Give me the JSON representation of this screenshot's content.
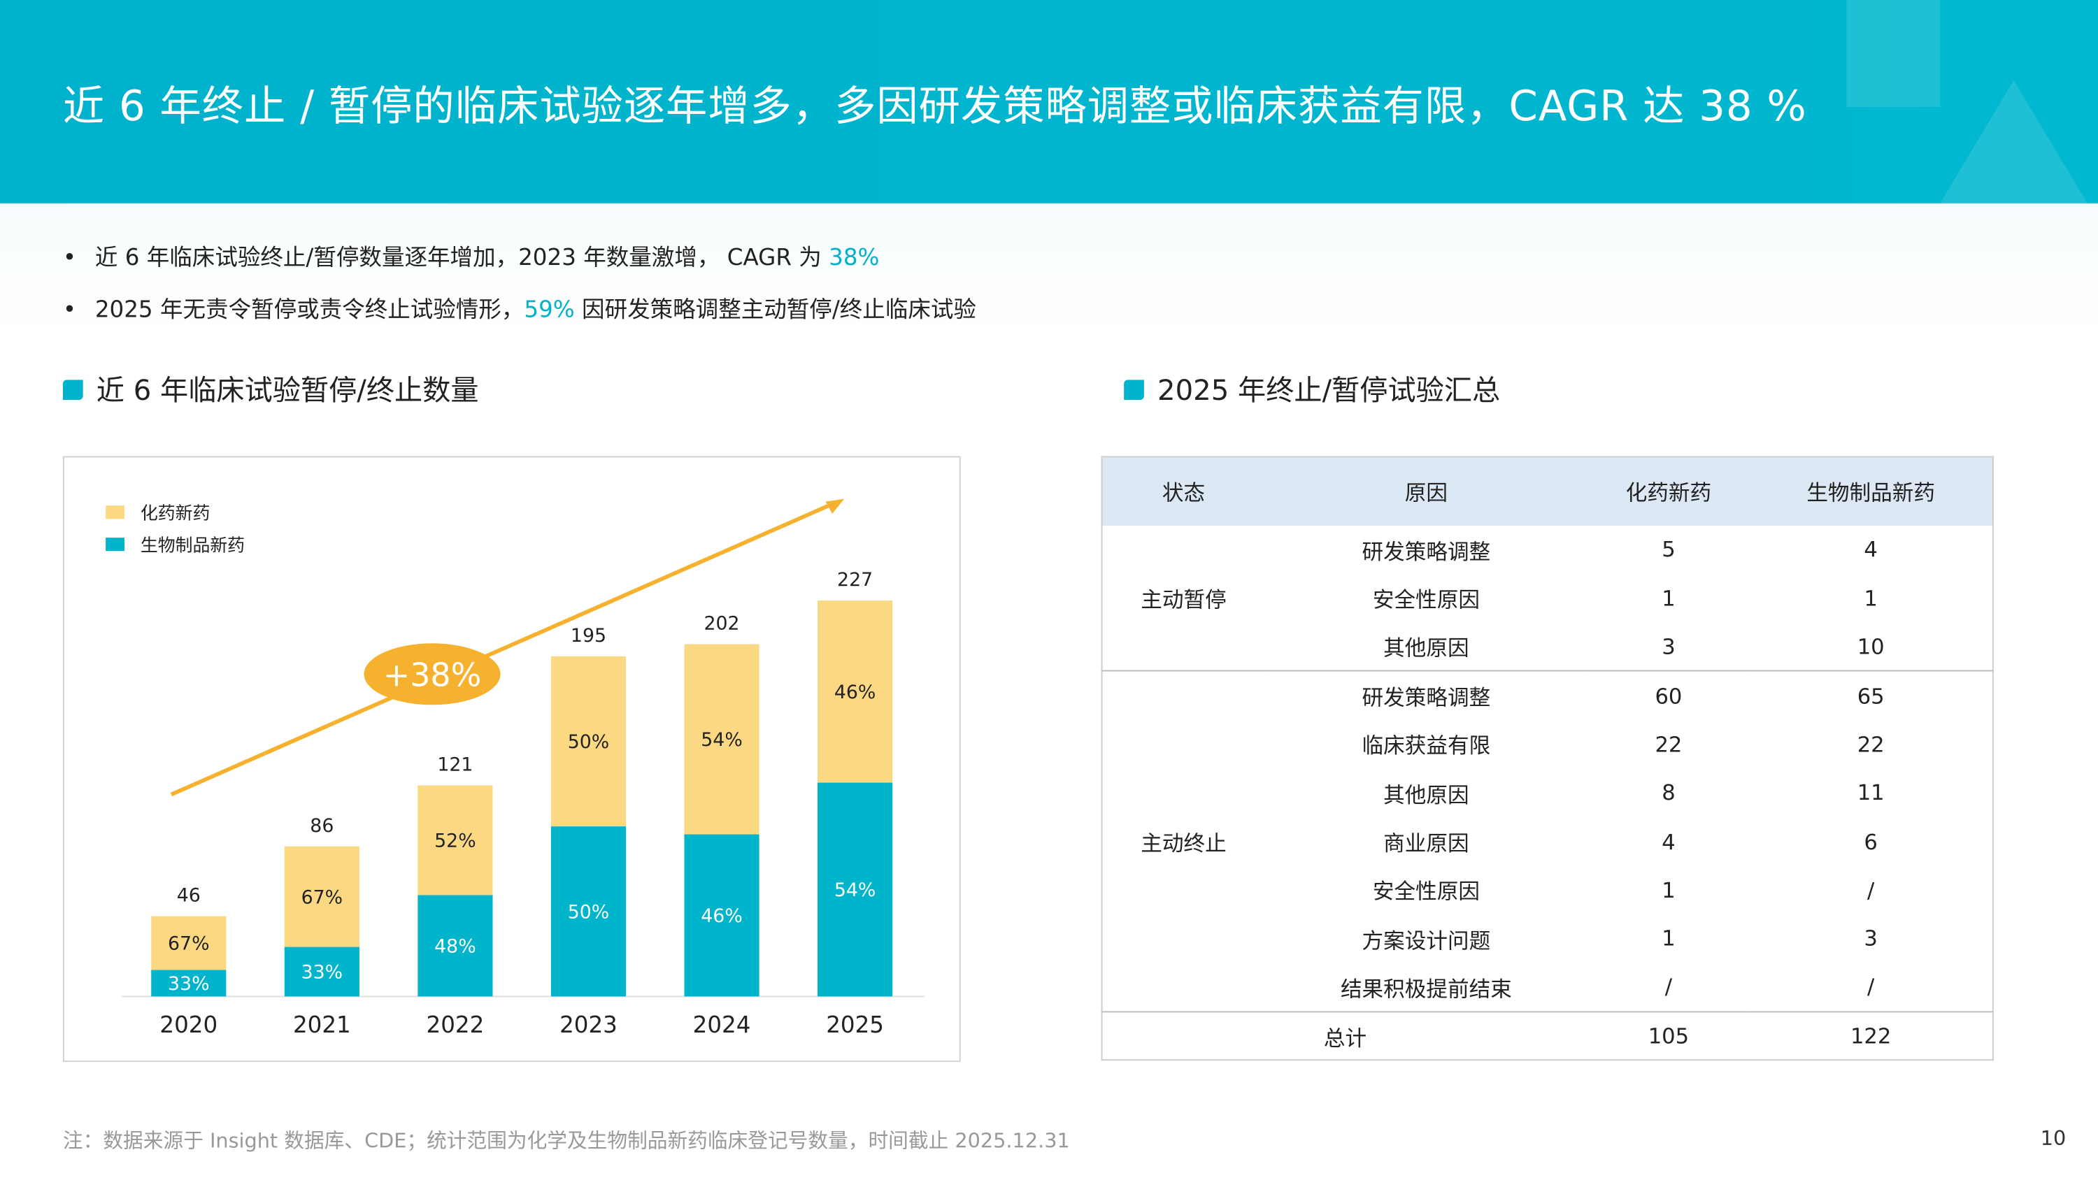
{
  "title": "近 6 年终止 / 暂停的临床试验逐年增多，多因研发策略调整或临床获益有限，CAGR 达 38 %",
  "bullets": [
    {
      "pre": "近 6 年临床试验终止/暂停数量逐年增加，2023 年数量激增， CAGR 为 ",
      "hl": "38%",
      "post": ""
    },
    {
      "pre": "2025 年无责令暂停或责令终止试验情形，",
      "hl": "59%",
      "post": " 因研发策略调整主动暂停/终止临床试验"
    }
  ],
  "left_section_title": "近 6 年临床试验暂停/终止数量",
  "right_section_title": "2025 年终止/暂停试验汇总",
  "colors": {
    "accent": "#00B2CB",
    "chem": "#FCD883",
    "bio": "#00B4CB",
    "arrow": "#F6B22E"
  },
  "chart_data": {
    "type": "bar",
    "stacked": true,
    "categories": [
      "2020",
      "2021",
      "2022",
      "2023",
      "2024",
      "2025"
    ],
    "totals": [
      46,
      86,
      121,
      195,
      202,
      227
    ],
    "series": [
      {
        "name": "化药新药",
        "percent": [
          67,
          67,
          52,
          50,
          54,
          46
        ],
        "color": "#FCD883"
      },
      {
        "name": "生物制品新药",
        "percent": [
          33,
          33,
          48,
          50,
          46,
          54
        ],
        "color": "#00B4CB"
      }
    ],
    "annotation": "+38%",
    "legend": "top-left",
    "ylim": [
      0,
      227
    ],
    "grid": false
  },
  "table": {
    "headers": [
      "状态",
      "原因",
      "化药新药",
      "生物制品新药"
    ],
    "groups": [
      {
        "status": "主动暂停",
        "rows": [
          [
            "研发策略调整",
            "5",
            "4"
          ],
          [
            "安全性原因",
            "1",
            "1"
          ],
          [
            "其他原因",
            "3",
            "10"
          ]
        ]
      },
      {
        "status": "主动终止",
        "rows": [
          [
            "研发策略调整",
            "60",
            "65"
          ],
          [
            "临床获益有限",
            "22",
            "22"
          ],
          [
            "其他原因",
            "8",
            "11"
          ],
          [
            "商业原因",
            "4",
            "6"
          ],
          [
            "安全性原因",
            "1",
            "/"
          ],
          [
            "方案设计问题",
            "1",
            "3"
          ],
          [
            "结果积极提前结束",
            "/",
            "/"
          ]
        ]
      }
    ],
    "total": {
      "label": "总计",
      "chem": "105",
      "bio": "122"
    }
  },
  "footnote": "注：数据来源于 Insight 数据库、CDE；统计范围为化学及生物制品新药临床登记号数量，时间截止 2025.12.31",
  "page_number": "10"
}
